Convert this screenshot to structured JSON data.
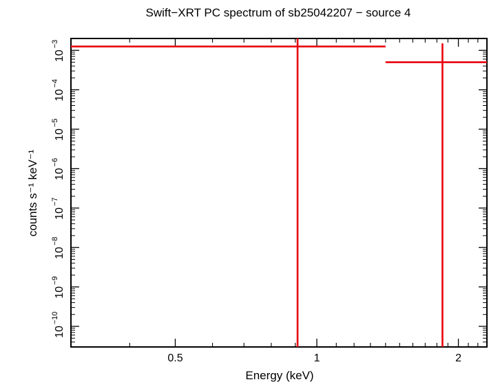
{
  "chart_data": {
    "type": "scatter",
    "title": "Swift−XRT PC spectrum of sb25042207 − source 4",
    "xlabel": "Energy (keV)",
    "ylabel": "counts s⁻¹ keV⁻¹",
    "x_scale": "log",
    "y_scale": "log",
    "xlim": [
      0.3,
      2.3
    ],
    "ylim": [
      3e-11,
      0.002
    ],
    "x_ticks": [
      {
        "value": 0.5,
        "label": "0.5"
      },
      {
        "value": 1,
        "label": "1"
      },
      {
        "value": 2,
        "label": "2"
      }
    ],
    "y_ticks": [
      {
        "value": 0.001,
        "base": "10",
        "exp": "−3"
      },
      {
        "value": 0.0001,
        "base": "10",
        "exp": "−4"
      },
      {
        "value": 1e-05,
        "base": "10",
        "exp": "−5"
      },
      {
        "value": 1e-06,
        "base": "10",
        "exp": "−6"
      },
      {
        "value": 1e-07,
        "base": "10",
        "exp": "−7"
      },
      {
        "value": 1e-08,
        "base": "10",
        "exp": "−8"
      },
      {
        "value": 1e-09,
        "base": "10",
        "exp": "−9"
      },
      {
        "value": 1e-10,
        "base": "10",
        "exp": "−10"
      }
    ],
    "series": [
      {
        "name": "source 4",
        "color": "#e8000b",
        "points": [
          {
            "x": 0.91,
            "xlo": 0.3,
            "xhi": 1.4,
            "y": 0.00125,
            "ylo": 3e-11,
            "yhi": 0.002
          },
          {
            "x": 1.85,
            "xlo": 1.4,
            "xhi": 2.3,
            "y": 0.0005,
            "ylo": 3e-11,
            "yhi": 0.0015
          }
        ]
      }
    ]
  }
}
